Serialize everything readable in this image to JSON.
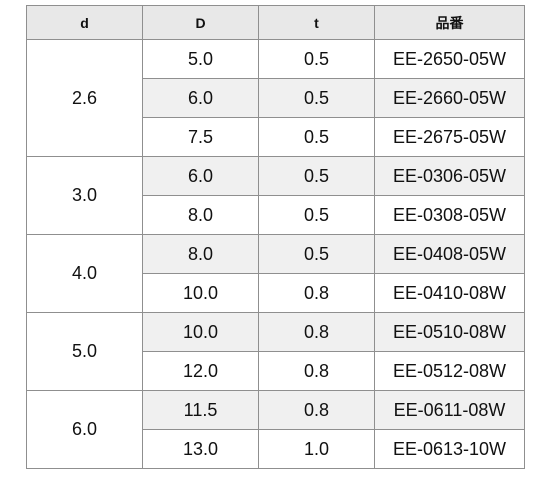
{
  "headers": {
    "d": "d",
    "D": "D",
    "t": "t",
    "part": "品番"
  },
  "groups": [
    {
      "d": "2.6",
      "rows": [
        {
          "D": "5.0",
          "t": "0.5",
          "part": "EE-2650-05W",
          "shaded": false
        },
        {
          "D": "6.0",
          "t": "0.5",
          "part": "EE-2660-05W",
          "shaded": true
        },
        {
          "D": "7.5",
          "t": "0.5",
          "part": "EE-2675-05W",
          "shaded": false
        }
      ]
    },
    {
      "d": "3.0",
      "rows": [
        {
          "D": "6.0",
          "t": "0.5",
          "part": "EE-0306-05W",
          "shaded": true
        },
        {
          "D": "8.0",
          "t": "0.5",
          "part": "EE-0308-05W",
          "shaded": false
        }
      ]
    },
    {
      "d": "4.0",
      "rows": [
        {
          "D": "8.0",
          "t": "0.5",
          "part": "EE-0408-05W",
          "shaded": true
        },
        {
          "D": "10.0",
          "t": "0.8",
          "part": "EE-0410-08W",
          "shaded": false
        }
      ]
    },
    {
      "d": "5.0",
      "rows": [
        {
          "D": "10.0",
          "t": "0.8",
          "part": "EE-0510-08W",
          "shaded": true
        },
        {
          "D": "12.0",
          "t": "0.8",
          "part": "EE-0512-08W",
          "shaded": false
        }
      ]
    },
    {
      "d": "6.0",
      "rows": [
        {
          "D": "11.5",
          "t": "0.8",
          "part": "EE-0611-08W",
          "shaded": true
        },
        {
          "D": "13.0",
          "t": "1.0",
          "part": "EE-0613-10W",
          "shaded": false
        }
      ]
    }
  ]
}
